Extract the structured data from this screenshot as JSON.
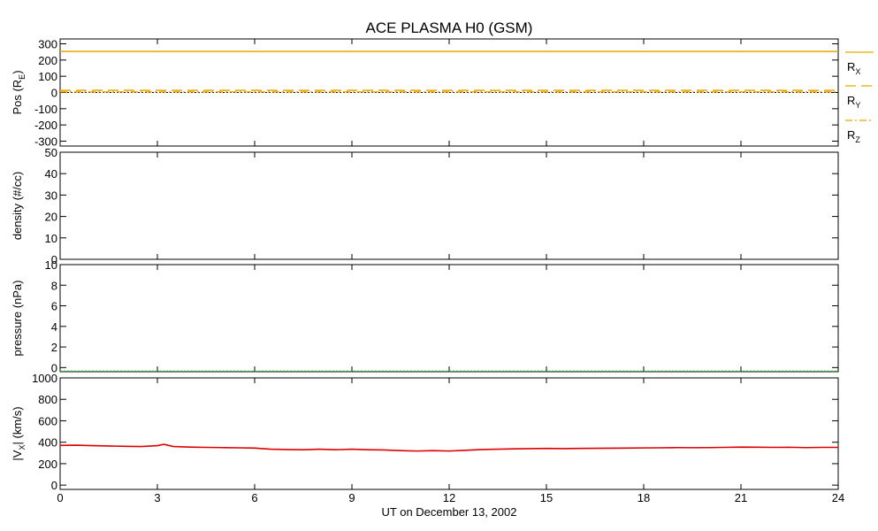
{
  "chart_data": {
    "title": "ACE PLASMA H0 (GSM)",
    "xlabel": "UT on December 13, 2002",
    "x_ticks": [
      "0",
      "3",
      "6",
      "9",
      "12",
      "15",
      "18",
      "21",
      "24"
    ],
    "xlim": [
      0,
      24
    ],
    "panels": [
      {
        "id": "pos",
        "type": "line",
        "ylabel_main": "Pos (R",
        "ylabel_sub": "E",
        "ylabel_end": ")",
        "ylim": [
          -330,
          330
        ],
        "y_ticks": [
          "300",
          "200",
          "100",
          "0",
          "-100",
          "-200",
          "-300"
        ],
        "y_tick_values": [
          300,
          200,
          100,
          0,
          -100,
          -200,
          -300
        ],
        "series": [
          {
            "name": "R",
            "sub": "X",
            "style": "solid",
            "color": "#e8a800",
            "x": [
              0,
              24
            ],
            "y": [
              253,
              253
            ]
          },
          {
            "name": "R",
            "sub": "Y",
            "style": "dashed",
            "color": "#e8a800",
            "x": [
              0,
              24
            ],
            "y": [
              13,
              13
            ]
          },
          {
            "name": "R",
            "sub": "Z",
            "style": "dashdot",
            "color": "#e8a800",
            "x": [
              0,
              24
            ],
            "y": [
              4,
              4
            ]
          }
        ],
        "zero_line": true
      },
      {
        "id": "density",
        "type": "line",
        "ylabel_main": "density (#/cc)",
        "ylim": [
          0,
          50
        ],
        "y_ticks": [
          "50",
          "40",
          "30",
          "20",
          "10",
          "0"
        ],
        "y_tick_values": [
          50,
          40,
          30,
          20,
          10,
          0
        ],
        "series": []
      },
      {
        "id": "pressure",
        "type": "line",
        "ylabel_main": "pressure (nPa)",
        "ylim": [
          -0.4,
          10
        ],
        "y_ticks": [
          "10",
          "8",
          "6",
          "4",
          "2",
          "0"
        ],
        "y_tick_values": [
          10,
          8,
          6,
          4,
          2,
          0
        ],
        "series": [
          {
            "style": "dotted",
            "color": "#22aa22",
            "x": [
              0,
              24
            ],
            "y": [
              -0.35,
              -0.35
            ]
          }
        ]
      },
      {
        "id": "vx",
        "type": "line",
        "ylabel_main": "|V",
        "ylabel_sub": "X",
        "ylabel_end": "| (km/s)",
        "ylim": [
          -40,
          1000
        ],
        "y_ticks": [
          "1000",
          "800",
          "600",
          "400",
          "200",
          "0"
        ],
        "y_tick_values": [
          1000,
          800,
          600,
          400,
          200,
          0
        ],
        "series": [
          {
            "style": "solid",
            "color": "#dd0000",
            "x": [
              0,
              0.5,
              1,
              1.5,
              2,
              2.5,
              3,
              3.2,
              3.5,
              4,
              4.5,
              5,
              5.5,
              6,
              6.5,
              7,
              7.5,
              8,
              8.5,
              9,
              9.5,
              10,
              10.5,
              11,
              11.5,
              12,
              12.5,
              13,
              13.5,
              14,
              14.5,
              15,
              15.5,
              16,
              16.5,
              17,
              17.5,
              18,
              18.5,
              19,
              19.5,
              20,
              20.5,
              21,
              21.5,
              22,
              22.5,
              23,
              23.5,
              24
            ],
            "y": [
              370,
              372,
              368,
              365,
              362,
              360,
              368,
              380,
              360,
              355,
              352,
              350,
              348,
              345,
              335,
              332,
              330,
              335,
              330,
              335,
              330,
              328,
              322,
              318,
              322,
              318,
              325,
              332,
              335,
              338,
              340,
              342,
              340,
              342,
              343,
              344,
              345,
              347,
              348,
              350,
              349,
              350,
              352,
              355,
              354,
              352,
              353,
              350,
              352,
              352
            ]
          }
        ]
      }
    ]
  }
}
